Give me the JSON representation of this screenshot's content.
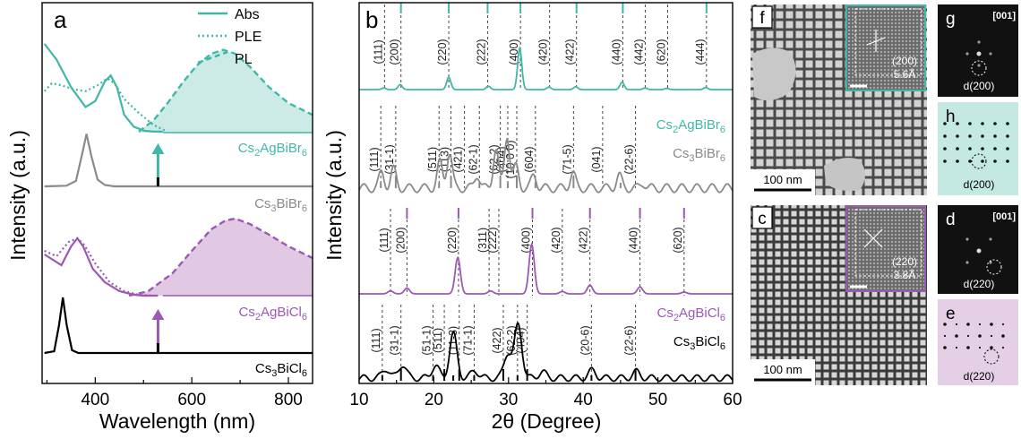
{
  "colors": {
    "teal": "#3fb8a8",
    "teal_fill": "#cdebe6",
    "purple": "#9b59b6",
    "purple_fill": "#e2c9e3",
    "gray": "#8a8a8a",
    "black": "#000000",
    "teal_panel_bg": "#c4e8e2",
    "purple_panel_bg": "#e4cfe6"
  },
  "chart_data": [
    {
      "panel": "a",
      "type": "line",
      "title": "",
      "xlabel": "Wavelength (nm)",
      "ylabel": "Intensity (a.u.)",
      "xlim": [
        290,
        850
      ],
      "xticks": [
        400,
        600,
        800
      ],
      "legend": {
        "placement": "top-right",
        "entries": [
          "Abs",
          "PLE",
          "PL"
        ]
      },
      "samples": [
        "Cs2AgBiBr6",
        "Cs3BiBr6",
        "Cs2AgBiCl6",
        "Cs3BiCl6"
      ],
      "arrows_at_nm": [
        530,
        530
      ],
      "series": [
        {
          "sample": "Cs2AgBiBr6",
          "kind": "Abs",
          "peak_nm": 432,
          "x": [
            295,
            320,
            350,
            380,
            400,
            420,
            432,
            445,
            460,
            480,
            500,
            520,
            540
          ],
          "y": [
            0.9,
            0.74,
            0.46,
            0.26,
            0.32,
            0.52,
            0.58,
            0.46,
            0.18,
            0.06,
            0.02,
            0.01,
            0.01
          ]
        },
        {
          "sample": "Cs2AgBiBr6",
          "kind": "PLE",
          "x": [
            295,
            310,
            330,
            355,
            380,
            405,
            425,
            440,
            460,
            490,
            520,
            545
          ],
          "y": [
            0.42,
            0.5,
            0.48,
            0.44,
            0.42,
            0.48,
            0.55,
            0.5,
            0.34,
            0.2,
            0.08,
            0.02
          ]
        },
        {
          "sample": "Cs2AgBiBr6",
          "kind": "PL",
          "peak_nm": 665,
          "x": [
            490,
            520,
            550,
            580,
            610,
            640,
            665,
            690,
            720,
            760,
            800,
            850
          ],
          "y": [
            0.01,
            0.12,
            0.3,
            0.5,
            0.68,
            0.8,
            0.84,
            0.8,
            0.67,
            0.46,
            0.3,
            0.18
          ]
        },
        {
          "sample": "Cs3BiBr6",
          "kind": "Abs",
          "peak_nm": 382,
          "x": [
            295,
            340,
            360,
            372,
            382,
            392,
            405,
            420,
            440,
            500,
            600,
            850
          ],
          "y": [
            0.0,
            0.01,
            0.08,
            0.45,
            0.78,
            0.45,
            0.1,
            0.02,
            0.0,
            0.0,
            0.0,
            0.0
          ]
        },
        {
          "sample": "Cs2AgBiCl6",
          "kind": "Abs",
          "peak_nm": 363,
          "x": [
            295,
            330,
            350,
            363,
            375,
            395,
            420,
            450,
            480,
            500,
            530
          ],
          "y": [
            0.46,
            0.34,
            0.55,
            0.64,
            0.55,
            0.3,
            0.15,
            0.05,
            0.01,
            0.0,
            0.0
          ]
        },
        {
          "sample": "Cs2AgBiCl6",
          "kind": "PLE",
          "x": [
            295,
            320,
            345,
            363,
            378,
            400,
            430,
            460,
            490,
            520
          ],
          "y": [
            0.5,
            0.44,
            0.6,
            0.64,
            0.56,
            0.36,
            0.15,
            0.05,
            0.01,
            0.0
          ]
        },
        {
          "sample": "Cs2AgBiCl6",
          "kind": "PL",
          "peak_nm": 690,
          "x": [
            470,
            510,
            560,
            600,
            640,
            670,
            690,
            720,
            760,
            800,
            850
          ],
          "y": [
            0.0,
            0.05,
            0.25,
            0.5,
            0.74,
            0.84,
            0.86,
            0.8,
            0.68,
            0.55,
            0.42
          ]
        },
        {
          "sample": "Cs3BiCl6",
          "kind": "Abs",
          "peak_nm": 333,
          "x": [
            295,
            315,
            325,
            333,
            341,
            352,
            365,
            400,
            850
          ],
          "y": [
            0.0,
            0.03,
            0.5,
            1.0,
            0.5,
            0.05,
            0.0,
            0.0,
            0.0
          ]
        }
      ]
    },
    {
      "panel": "b",
      "type": "line",
      "title": "",
      "xlabel": "2θ (Degree)",
      "ylabel": "Intensity (a.u.)",
      "xlim": [
        10,
        60
      ],
      "xticks": [
        10,
        20,
        30,
        40,
        50,
        60
      ],
      "samples": [
        "Cs2AgBiBr6",
        "Cs3BiBr6",
        "Cs2AgBiCl6",
        "Cs3BiCl6"
      ],
      "series": [
        {
          "sample": "Cs2AgBiBr6",
          "peaks": [
            [
              13.3,
              0.04
            ],
            [
              15.5,
              0.12
            ],
            [
              22.0,
              0.3
            ],
            [
              27.3,
              0.08
            ],
            [
              31.5,
              1.0
            ],
            [
              35.4,
              0.06
            ],
            [
              39.0,
              0.07
            ],
            [
              45.2,
              0.18
            ],
            [
              48.3,
              0.04
            ],
            [
              51.2,
              0.03
            ],
            [
              56.4,
              0.05
            ]
          ],
          "width_deg": 0.4,
          "hkl": [
            "(111)",
            "(200)",
            "(220)",
            "(222)",
            "(400)",
            "(420)",
            "(422)",
            "(440)",
            "(442)",
            "(620)",
            "(444)"
          ],
          "hkl_2theta": [
            13.4,
            15.6,
            22.0,
            27.2,
            31.6,
            35.5,
            39.1,
            45.3,
            48.3,
            51.3,
            56.5
          ],
          "ref_ticks_2theta": [
            15.6,
            22.0,
            27.2,
            31.6,
            39.1,
            45.3,
            56.5
          ]
        },
        {
          "sample": "Cs3BiBr6",
          "peaks": [
            [
              13.0,
              0.18
            ],
            [
              14.6,
              0.22
            ],
            [
              20.8,
              0.3
            ],
            [
              22.1,
              0.42
            ],
            [
              25.8,
              0.16
            ],
            [
              28.3,
              0.46
            ],
            [
              29.8,
              0.62
            ],
            [
              31.0,
              0.25
            ],
            [
              33.4,
              0.15
            ],
            [
              38.6,
              0.18
            ],
            [
              44.8,
              0.15
            ],
            [
              48.0,
              0.06
            ]
          ],
          "width_deg": 0.5,
          "hkl": [
            "(111)",
            "(31-1)",
            "(511)",
            "(113)",
            "(421)",
            "(62-1)",
            "(62-2)",
            "(404)",
            "(10 0 0)",
            "(604)",
            "(71-5)",
            "(041)",
            "(22-6)"
          ],
          "hkl_2theta": [
            12.9,
            14.9,
            20.7,
            22.3,
            24.1,
            26.1,
            28.9,
            29.9,
            31.1,
            33.6,
            38.7,
            42.6,
            47.0
          ],
          "ref_sticks_2theta": [
            12.9,
            14.9,
            20.7,
            22.3,
            26.1,
            28.9,
            29.9,
            31.1,
            33.6,
            38.7,
            45.0
          ]
        },
        {
          "sample": "Cs2AgBiCl6",
          "peaks": [
            [
              14.2,
              0.05
            ],
            [
              16.4,
              0.1
            ],
            [
              23.2,
              0.62
            ],
            [
              27.6,
              0.05
            ],
            [
              33.1,
              0.85
            ],
            [
              37.2,
              0.04
            ],
            [
              40.9,
              0.15
            ],
            [
              47.6,
              0.12
            ],
            [
              53.5,
              0.03
            ]
          ],
          "width_deg": 0.5,
          "hkl": [
            "(111)",
            "(200)",
            "(220)",
            "(311)",
            "(222)",
            "(400)",
            "(420)",
            "(422)",
            "(440)",
            "(620)"
          ],
          "hkl_2theta": [
            14.2,
            16.4,
            23.3,
            27.4,
            28.7,
            33.2,
            37.2,
            40.9,
            47.6,
            53.5
          ],
          "ref_ticks_2theta": [
            16.4,
            23.3,
            33.2,
            40.9,
            47.6,
            53.5
          ]
        },
        {
          "sample": "Cs3BiCl6",
          "peaks": [
            [
              13.6,
              0.15
            ],
            [
              15.8,
              0.22
            ],
            [
              20.2,
              0.2
            ],
            [
              22.6,
              0.7
            ],
            [
              25.5,
              0.12
            ],
            [
              29.9,
              0.4
            ],
            [
              31.3,
              0.85
            ],
            [
              34.5,
              0.1
            ],
            [
              41.2,
              0.12
            ],
            [
              47.1,
              0.1
            ]
          ],
          "width_deg": 0.7,
          "hkl": [
            "(111)",
            "(31-1)",
            "(51-1)",
            "(511)",
            "(11-3)",
            "(71-1)",
            "(422)",
            "(62-2)",
            "(404)",
            "(20-6)",
            "(22-6)"
          ],
          "hkl_2theta": [
            13.1,
            15.6,
            19.9,
            21.4,
            23.4,
            25.4,
            29.3,
            31.2,
            32.5,
            41.1,
            47.0
          ],
          "ref_sticks_2theta": [
            13.1,
            15.6,
            19.9,
            21.4,
            22.6,
            23.4,
            25.4,
            29.3,
            31.2,
            32.5,
            41.1,
            47.0
          ]
        }
      ]
    }
  ],
  "panel_a": {
    "label": "a",
    "ylabel": "Intensity (a.u.)",
    "xlabel": "Wavelength (nm)",
    "ticks": [
      "400",
      "600",
      "800"
    ],
    "legend": [
      "Abs",
      "PLE",
      "PL"
    ],
    "samples": [
      {
        "pre": "Cs",
        "s1": "2",
        "mid": "AgBiBr",
        "s2": "6"
      },
      {
        "pre": "Cs",
        "s1": "3",
        "mid": "BiBr",
        "s2": "6"
      },
      {
        "pre": "Cs",
        "s1": "2",
        "mid": "AgBiCl",
        "s2": "6"
      },
      {
        "pre": "Cs",
        "s1": "3",
        "mid": "BiCl",
        "s2": "6"
      }
    ]
  },
  "panel_b": {
    "label": "b",
    "ylabel": "Intensity (a.u.)",
    "xlabel": "2θ (Degree)",
    "ticks": [
      "10",
      "20",
      "30",
      "40",
      "50",
      "60"
    ],
    "samples": [
      {
        "pre": "Cs",
        "s1": "2",
        "mid": "AgBiBr",
        "s2": "6"
      },
      {
        "pre": "Cs",
        "s1": "3",
        "mid": "BiBr",
        "s2": "6"
      },
      {
        "pre": "Cs",
        "s1": "2",
        "mid": "AgBiCl",
        "s2": "6"
      },
      {
        "pre": "Cs",
        "s1": "3",
        "mid": "BiCl",
        "s2": "6"
      }
    ]
  },
  "images": {
    "f": {
      "label": "f",
      "scalebar": "100 nm",
      "inset_hkl": "(200)",
      "inset_d": "5.6Å"
    },
    "c": {
      "label": "c",
      "scalebar": "100 nm",
      "inset_hkl": "(220)",
      "inset_d": "3.8Å"
    },
    "g": {
      "label": "g",
      "zone": "[001]",
      "spot": "d(200)"
    },
    "h": {
      "label": "h",
      "spot": "d(200)"
    },
    "d": {
      "label": "d",
      "zone": "[001]",
      "spot": "d(220)"
    },
    "e": {
      "label": "e",
      "spot": "d(220)"
    }
  }
}
